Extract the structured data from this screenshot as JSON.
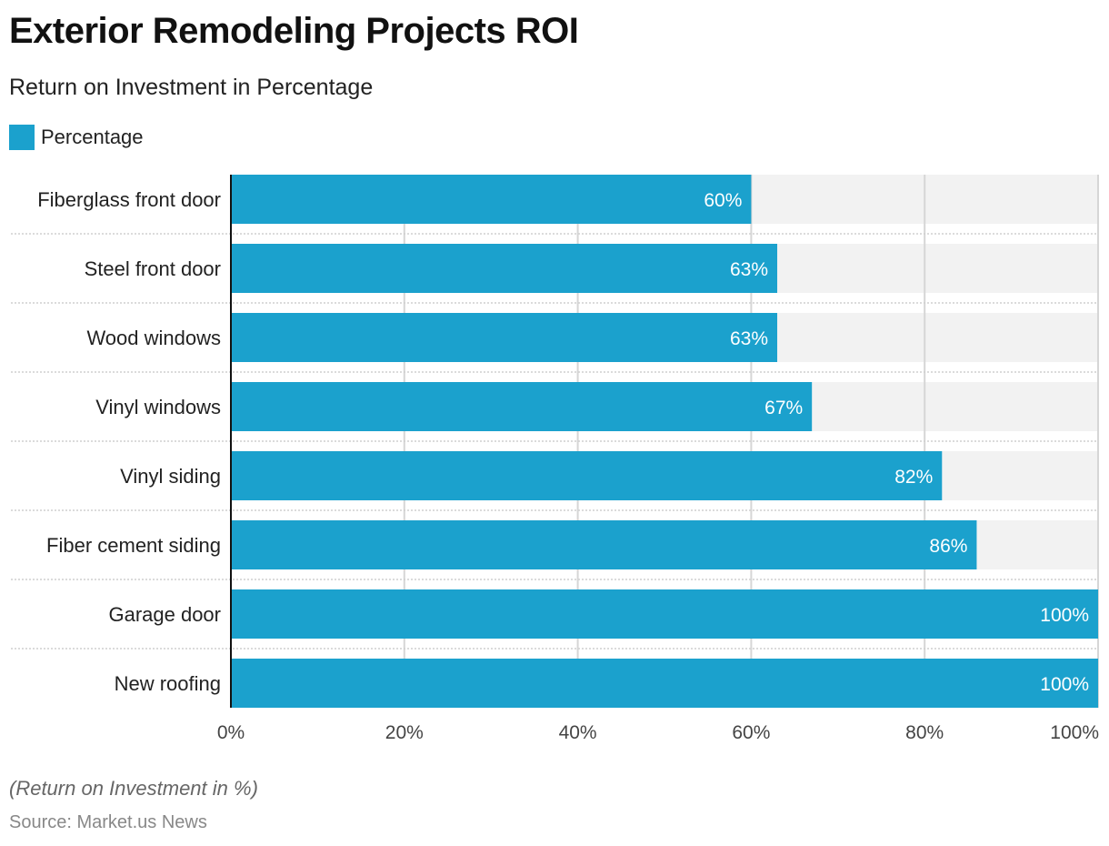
{
  "header": {
    "title": "Exterior Remodeling Projects ROI",
    "subtitle": "Return on Investment in Percentage"
  },
  "legend": {
    "label": "Percentage",
    "color": "#1ba1cd"
  },
  "footer": {
    "note": "(Return on Investment in %)",
    "source": "Source: Market.us News"
  },
  "chart_data": {
    "type": "bar",
    "orientation": "horizontal",
    "title": "Exterior Remodeling Projects ROI",
    "subtitle": "Return on Investment in Percentage",
    "xlabel": "",
    "ylabel": "",
    "xlim": [
      0,
      100
    ],
    "x_ticks": [
      "0%",
      "20%",
      "40%",
      "60%",
      "80%",
      "100%"
    ],
    "x_tick_values": [
      0,
      20,
      40,
      60,
      80,
      100
    ],
    "categories": [
      "Fiberglass front door",
      "Steel front door",
      "Wood windows",
      "Vinyl windows",
      "Vinyl siding",
      "Fiber cement siding",
      "Garage door",
      "New roofing"
    ],
    "series": [
      {
        "name": "Percentage",
        "color": "#1ba1cd",
        "values": [
          60,
          63,
          63,
          67,
          82,
          86,
          100,
          100
        ],
        "labels": [
          "60%",
          "63%",
          "63%",
          "67%",
          "82%",
          "86%",
          "100%",
          "100%"
        ]
      }
    ],
    "legend_position": "top-left",
    "grid": true,
    "track_color": "#f2f2f2",
    "grid_color": "#d6d6d6"
  }
}
